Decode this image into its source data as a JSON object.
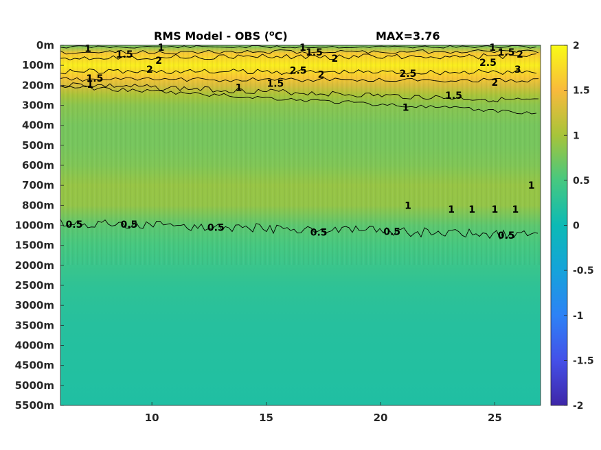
{
  "chart_data": {
    "type": "heatmap",
    "title": "RMS Model - OBS (",
    "title_sup": "o",
    "title_end": "C)",
    "max_label": "MAX=3.76",
    "x_ticks": [
      10,
      15,
      20,
      25
    ],
    "xlim": [
      6,
      27
    ],
    "y_ticks": [
      "0m",
      "100m",
      "200m",
      "300m",
      "400m",
      "500m",
      "600m",
      "700m",
      "800m",
      "1000m",
      "1500m",
      "2000m",
      "2500m",
      "3000m",
      "3500m",
      "4000m",
      "4500m",
      "5000m",
      "5500m"
    ],
    "colorbar": {
      "ticks": [
        "2",
        "1.5",
        "1",
        "0.5",
        "0",
        "-0.5",
        "-1",
        "-1.5",
        "-2"
      ],
      "range": [
        -2,
        2
      ]
    },
    "depth_profile": [
      {
        "level": 0,
        "value": 0.7
      },
      {
        "level": 0.4,
        "value": 1.6
      },
      {
        "level": 1,
        "value": 1.9
      },
      {
        "level": 1.6,
        "value": 1.6
      },
      {
        "level": 2,
        "value": 1.3
      },
      {
        "level": 2.5,
        "value": 1.0
      },
      {
        "level": 3,
        "value": 0.85
      },
      {
        "level": 4,
        "value": 0.75
      },
      {
        "level": 5,
        "value": 0.75
      },
      {
        "level": 6,
        "value": 0.8
      },
      {
        "level": 7,
        "value": 0.92
      },
      {
        "level": 8,
        "value": 0.9
      },
      {
        "level": 9,
        "value": 0.62
      },
      {
        "level": 10,
        "value": 0.5
      },
      {
        "level": 11,
        "value": 0.4
      },
      {
        "level": 12,
        "value": 0.3
      },
      {
        "level": 14,
        "value": 0.22
      },
      {
        "level": 16,
        "value": 0.2
      },
      {
        "level": 18,
        "value": 0.17
      }
    ],
    "contour_labels": [
      {
        "text": "1",
        "x": 7.2,
        "level": 0.15
      },
      {
        "text": "1.5",
        "x": 8.8,
        "level": 0.45
      },
      {
        "text": "1",
        "x": 10.4,
        "level": 0.1
      },
      {
        "text": "2",
        "x": 10.3,
        "level": 0.75
      },
      {
        "text": "2",
        "x": 9.9,
        "level": 1.2
      },
      {
        "text": "1.5",
        "x": 7.5,
        "level": 1.65
      },
      {
        "text": "1",
        "x": 7.3,
        "level": 1.95
      },
      {
        "text": "1",
        "x": 16.6,
        "level": 0.1
      },
      {
        "text": "1.5",
        "x": 17.1,
        "level": 0.35
      },
      {
        "text": "2",
        "x": 18.0,
        "level": 0.65
      },
      {
        "text": "2.5",
        "x": 16.4,
        "level": 1.25
      },
      {
        "text": "2",
        "x": 17.4,
        "level": 1.45
      },
      {
        "text": "1",
        "x": 13.8,
        "level": 2.1
      },
      {
        "text": "1.5",
        "x": 15.4,
        "level": 1.9
      },
      {
        "text": "2.5",
        "x": 21.2,
        "level": 1.4
      },
      {
        "text": "1",
        "x": 24.9,
        "level": 0.1
      },
      {
        "text": "1.5",
        "x": 25.5,
        "level": 0.35
      },
      {
        "text": "2",
        "x": 26.1,
        "level": 0.45
      },
      {
        "text": "2.5",
        "x": 24.7,
        "level": 0.85
      },
      {
        "text": "3",
        "x": 26.0,
        "level": 1.2
      },
      {
        "text": "2",
        "x": 25.0,
        "level": 1.85
      },
      {
        "text": "1.5",
        "x": 23.2,
        "level": 2.5
      },
      {
        "text": "1",
        "x": 21.1,
        "level": 3.1
      },
      {
        "text": "0.5",
        "x": 6.6,
        "level": 8.95
      },
      {
        "text": "0.5",
        "x": 9.0,
        "level": 8.95
      },
      {
        "text": "0.5",
        "x": 12.8,
        "level": 9.1
      },
      {
        "text": "0.5",
        "x": 17.3,
        "level": 9.35
      },
      {
        "text": "0.5",
        "x": 20.5,
        "level": 9.3
      },
      {
        "text": "0.5",
        "x": 25.5,
        "level": 9.5
      },
      {
        "text": "1",
        "x": 21.2,
        "level": 8.0
      },
      {
        "text": "1",
        "x": 23.1,
        "level": 8.2
      },
      {
        "text": "1",
        "x": 24.0,
        "level": 8.2
      },
      {
        "text": "1",
        "x": 25.0,
        "level": 8.2
      },
      {
        "text": "1",
        "x": 25.9,
        "level": 8.2
      },
      {
        "text": "1",
        "x": 26.6,
        "level": 7.0
      }
    ]
  }
}
